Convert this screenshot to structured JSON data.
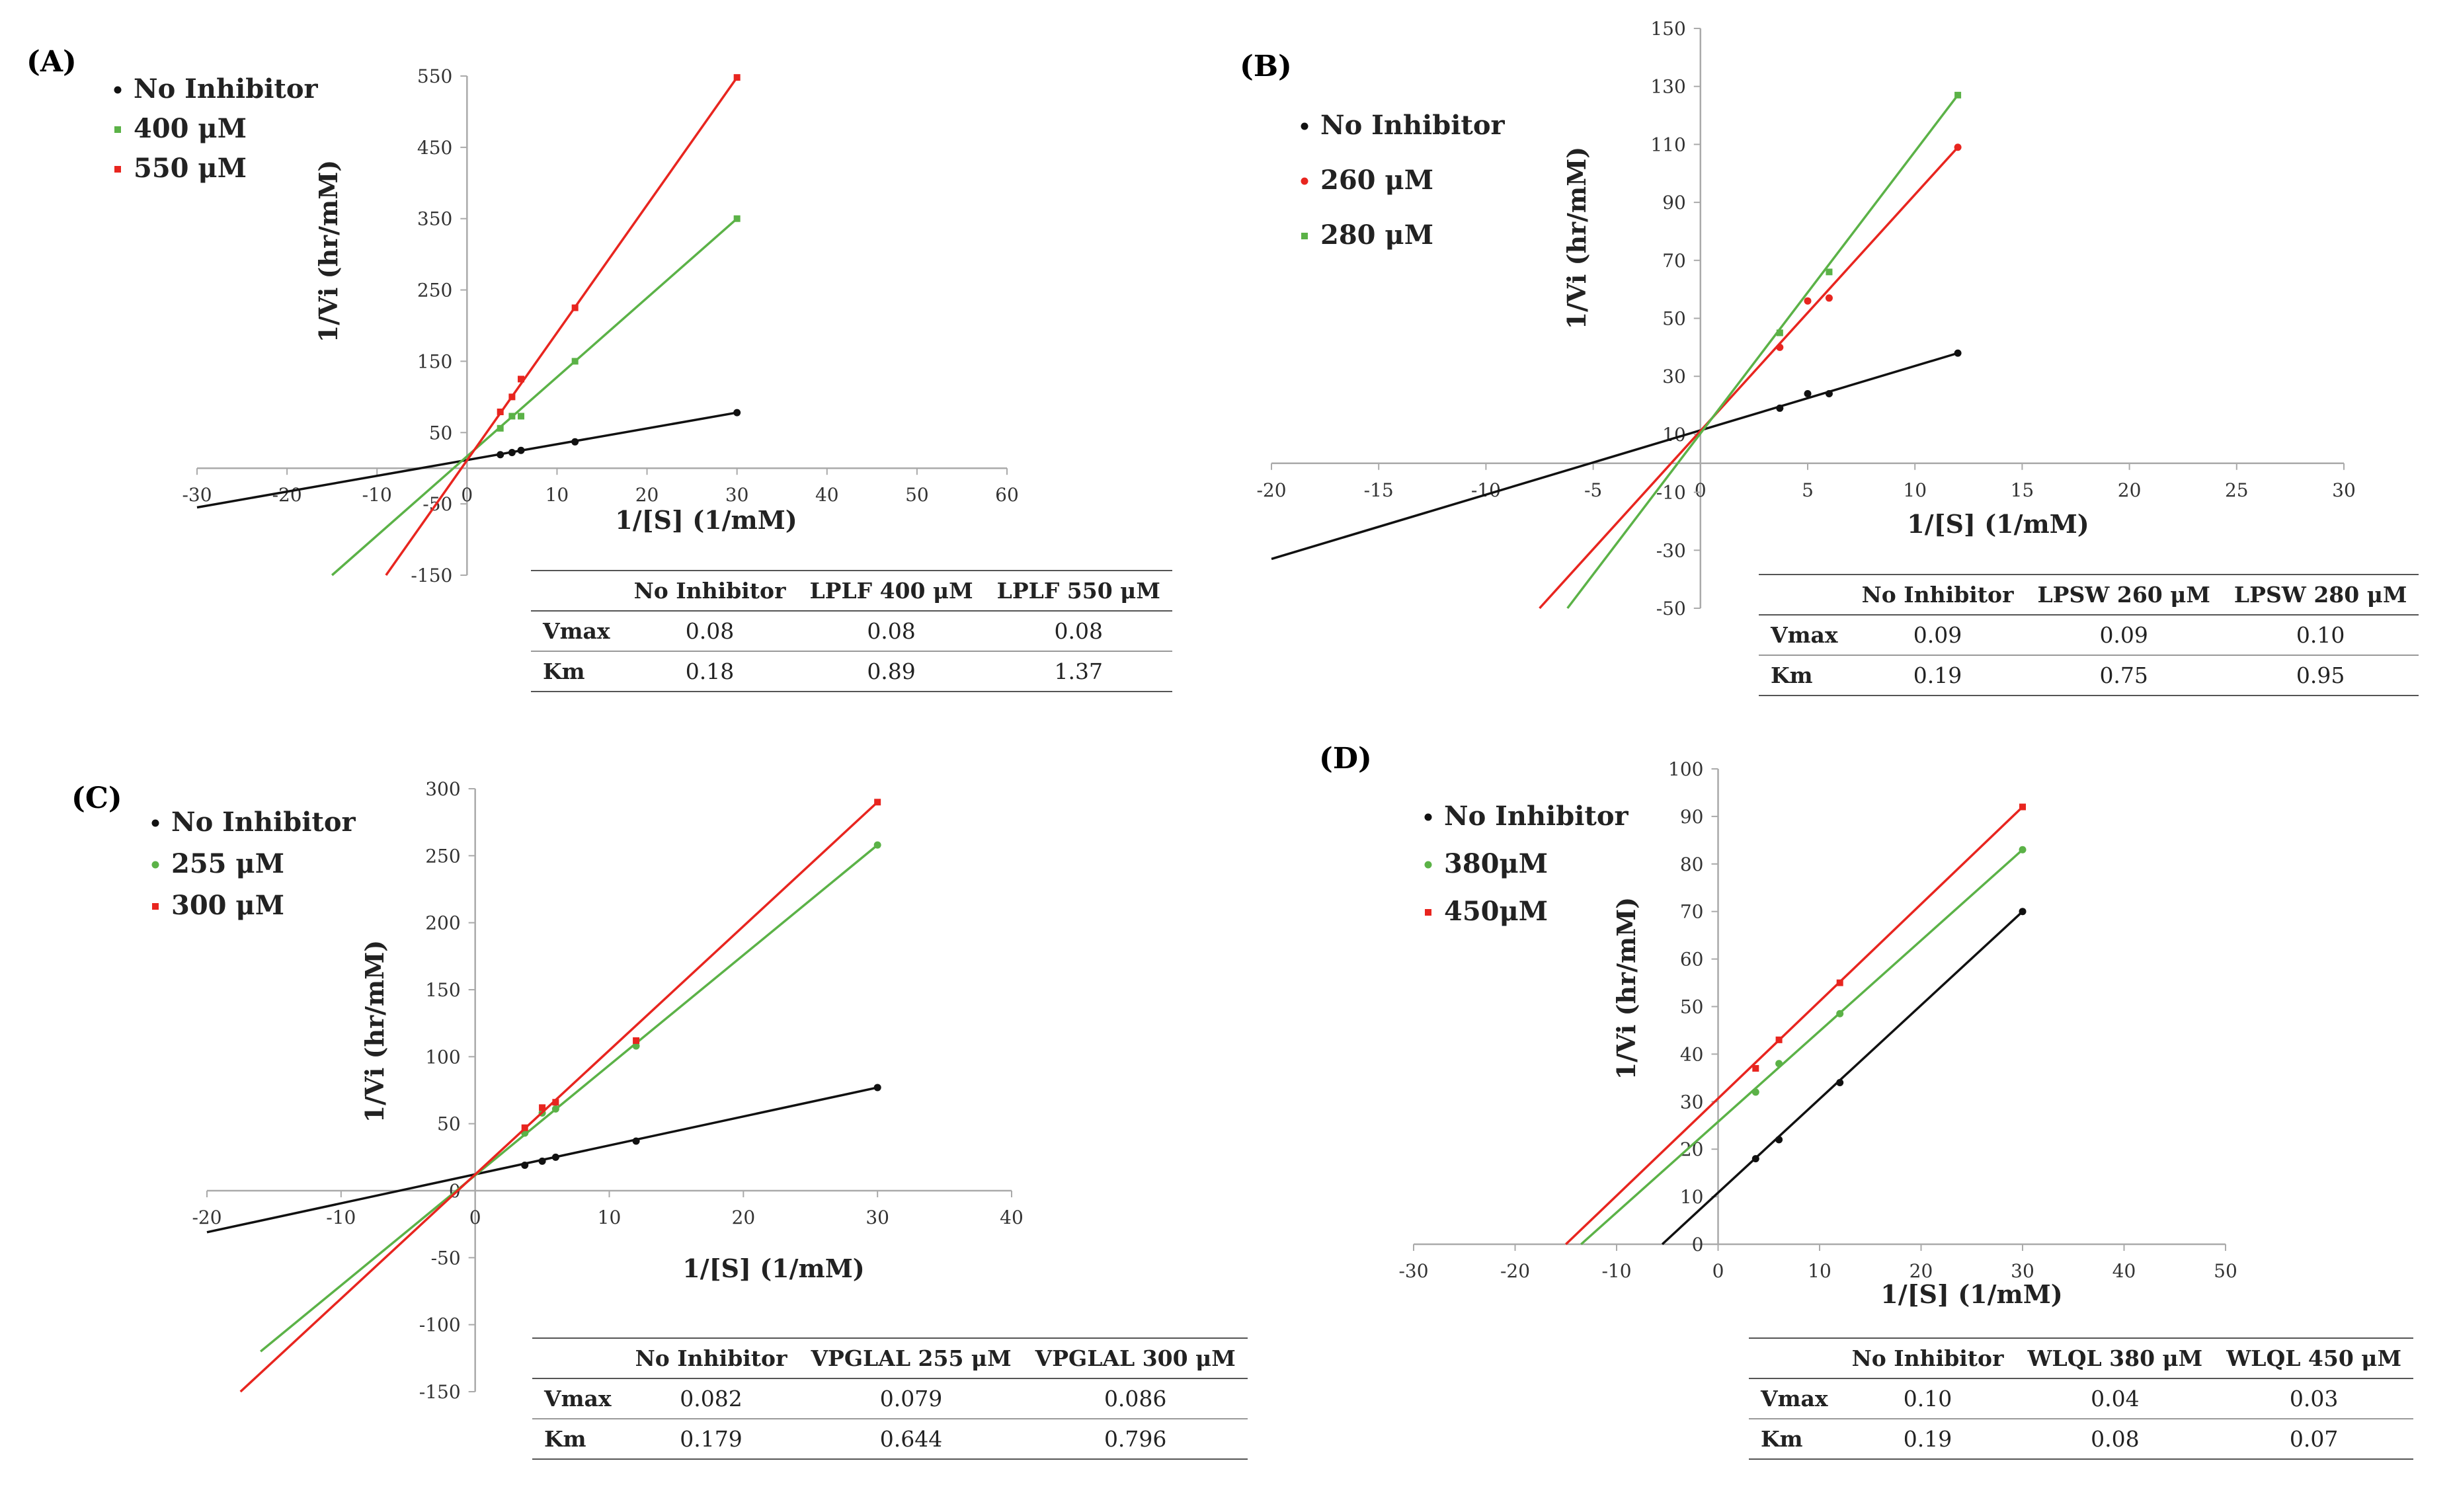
{
  "colors": {
    "black": "#111111",
    "green": "#5bb247",
    "red": "#e8251f",
    "axis": "#aaaaaa"
  },
  "chart_data": [
    {
      "id": "A",
      "type": "scatter",
      "label": "(A)",
      "xlabel": "1/[S] (1/mM)",
      "ylabel": "1/Vi (hr/mM)",
      "xlim": [
        -30,
        60
      ],
      "ylim": [
        -150,
        550
      ],
      "xticks": [
        -30,
        -20,
        -10,
        0,
        10,
        20,
        30,
        40,
        50,
        60
      ],
      "yticks": [
        -150,
        -50,
        50,
        150,
        250,
        350,
        450,
        550
      ],
      "series": [
        {
          "name": "No Inhibitor",
          "color": "black",
          "marker": "dot",
          "x": [
            3.7,
            5,
            6,
            12,
            30
          ],
          "y": [
            19,
            22,
            25,
            37,
            78
          ],
          "line": [
            [
              -30,
              -55
            ],
            [
              30,
              78
            ]
          ]
        },
        {
          "name": "400 μM",
          "color": "green",
          "marker": "square",
          "x": [
            3.7,
            5,
            6,
            12,
            30
          ],
          "y": [
            56,
            73,
            73,
            150,
            350
          ],
          "line": [
            [
              -15,
              -150
            ],
            [
              30,
              350
            ]
          ]
        },
        {
          "name": "550 μM",
          "color": "red",
          "marker": "square",
          "x": [
            3.7,
            5,
            6,
            12,
            30
          ],
          "y": [
            79,
            100,
            125,
            225,
            548
          ],
          "line": [
            [
              -9,
              -150
            ],
            [
              30,
              548
            ]
          ]
        }
      ],
      "table": {
        "headers": [
          "",
          "No Inhibitor",
          "LPLF 400 μM",
          "LPLF 550 μM"
        ],
        "rows": [
          [
            "Vmax",
            "0.08",
            "0.08",
            "0.08"
          ],
          [
            "Km",
            "0.18",
            "0.89",
            "1.37"
          ]
        ]
      }
    },
    {
      "id": "B",
      "type": "scatter",
      "label": "(B)",
      "xlabel": "1/[S] (1/mM)",
      "ylabel": "1/Vi (hr/mM)",
      "xlim": [
        -20,
        30
      ],
      "ylim": [
        -50,
        150
      ],
      "xticks": [
        -20,
        -15,
        -10,
        -5,
        0,
        5,
        10,
        15,
        20,
        25,
        30
      ],
      "yticks": [
        -50,
        -30,
        -10,
        10,
        30,
        50,
        70,
        90,
        110,
        130,
        150
      ],
      "series": [
        {
          "name": "No Inhibitor",
          "color": "black",
          "marker": "dot",
          "x": [
            3.7,
            5,
            6,
            12
          ],
          "y": [
            19,
            24,
            24,
            38
          ],
          "line": [
            [
              -20,
              -33
            ],
            [
              12,
              38
            ]
          ]
        },
        {
          "name": "260 μM",
          "color": "red",
          "marker": "dot",
          "x": [
            3.7,
            5,
            6,
            12
          ],
          "y": [
            40,
            56,
            57,
            109
          ],
          "line": [
            [
              -7.5,
              -50
            ],
            [
              12,
              109
            ]
          ]
        },
        {
          "name": "280 μM",
          "color": "green",
          "marker": "square",
          "x": [
            3.7,
            6,
            12
          ],
          "y": [
            45,
            66,
            127
          ],
          "line": [
            [
              -6.2,
              -50
            ],
            [
              12,
              127
            ]
          ]
        }
      ],
      "table": {
        "headers": [
          "",
          "No Inhibitor",
          "LPSW 260 μM",
          "LPSW 280 μM"
        ],
        "rows": [
          [
            "Vmax",
            "0.09",
            "0.09",
            "0.10"
          ],
          [
            "Km",
            "0.19",
            "0.75",
            "0.95"
          ]
        ]
      }
    },
    {
      "id": "C",
      "type": "scatter",
      "label": "(C)",
      "xlabel": "1/[S] (1/mM)",
      "ylabel": "1/Vi (hr/mM)",
      "xlim": [
        -20,
        40
      ],
      "ylim": [
        -150,
        300
      ],
      "xticks": [
        -20,
        -10,
        0,
        10,
        20,
        30,
        40
      ],
      "yticks": [
        -150,
        -100,
        -50,
        0,
        50,
        100,
        150,
        200,
        250,
        300
      ],
      "series": [
        {
          "name": "No Inhibitor",
          "color": "black",
          "marker": "dot",
          "x": [
            3.7,
            5,
            6,
            12,
            30
          ],
          "y": [
            19,
            22,
            25,
            37,
            77
          ],
          "line": [
            [
              -20,
              -31
            ],
            [
              30,
              77
            ]
          ]
        },
        {
          "name": "255 μM",
          "color": "green",
          "marker": "dot",
          "x": [
            3.7,
            5,
            6,
            12,
            30
          ],
          "y": [
            43,
            58,
            61,
            108,
            258
          ],
          "line": [
            [
              -16,
              -120
            ],
            [
              30,
              258
            ]
          ]
        },
        {
          "name": "300 μM",
          "color": "red",
          "marker": "square",
          "x": [
            3.7,
            5,
            6,
            12,
            30
          ],
          "y": [
            47,
            62,
            66,
            112,
            290
          ],
          "line": [
            [
              -17.5,
              -150
            ],
            [
              30,
              290
            ]
          ]
        }
      ],
      "table": {
        "headers": [
          "",
          "No Inhibitor",
          "VPGLAL 255 μM",
          "VPGLAL 300 μM"
        ],
        "rows": [
          [
            "Vmax",
            "0.082",
            "0.079",
            "0.086"
          ],
          [
            "Km",
            "0.179",
            "0.644",
            "0.796"
          ]
        ]
      }
    },
    {
      "id": "D",
      "type": "scatter",
      "label": "(D)",
      "xlabel": "1/[S] (1/mM)",
      "ylabel": "1/Vi (hr/mM)",
      "xlim": [
        -30,
        50
      ],
      "ylim": [
        0,
        100
      ],
      "xticks": [
        -30,
        -20,
        -10,
        0,
        10,
        20,
        30,
        40,
        50
      ],
      "yticks": [
        0,
        10,
        20,
        30,
        40,
        50,
        60,
        70,
        80,
        90,
        100
      ],
      "series": [
        {
          "name": "No Inhibitor",
          "color": "black",
          "marker": "dot",
          "x": [
            3.7,
            6,
            12,
            30
          ],
          "y": [
            18,
            22,
            34,
            70
          ],
          "line": [
            [
              -5.5,
              0
            ],
            [
              30,
              70
            ]
          ]
        },
        {
          "name": "380μM",
          "color": "green",
          "marker": "dot",
          "x": [
            3.7,
            6,
            12,
            30
          ],
          "y": [
            32,
            38,
            48.5,
            83
          ],
          "line": [
            [
              -13.5,
              0
            ],
            [
              30,
              83
            ]
          ]
        },
        {
          "name": "450μM",
          "color": "red",
          "marker": "square",
          "x": [
            3.7,
            6,
            12,
            30
          ],
          "y": [
            37,
            43,
            55,
            92
          ],
          "line": [
            [
              -15,
              0
            ],
            [
              30,
              92
            ]
          ]
        }
      ],
      "table": {
        "headers": [
          "",
          "No Inhibitor",
          "WLQL 380 μM",
          "WLQL 450 μM"
        ],
        "rows": [
          [
            "Vmax",
            "0.10",
            "0.04",
            "0.03"
          ],
          [
            "Km",
            "0.19",
            "0.08",
            "0.07"
          ]
        ]
      }
    }
  ]
}
